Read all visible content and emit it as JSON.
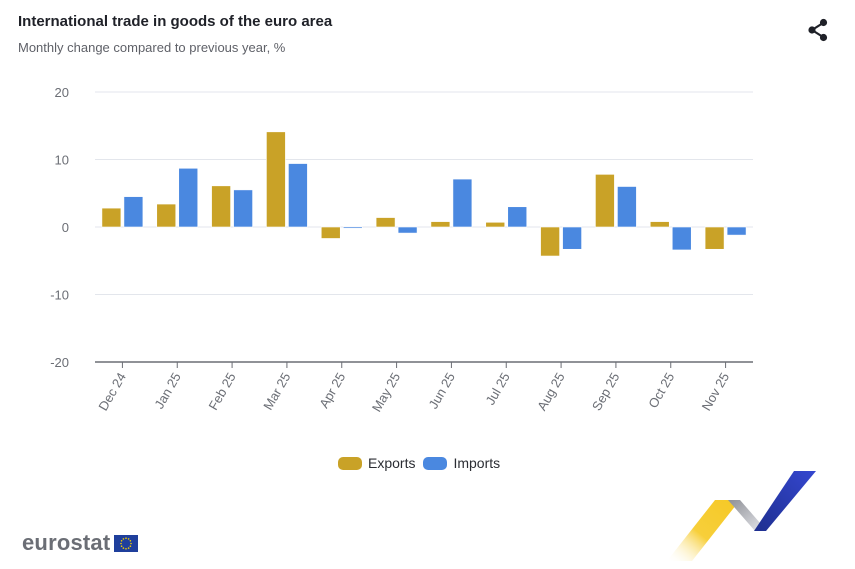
{
  "header": {
    "title": "International trade in goods of the euro area",
    "subtitle": "Monthly change compared to previous year, %",
    "share_icon": "share-icon"
  },
  "colors": {
    "exports": "#c9a227",
    "imports": "#4a88e0",
    "grid": "#e3e6ec",
    "axis": "#6b6e75",
    "tick_text": "#6b6e75"
  },
  "legend": {
    "items": [
      {
        "label": "Exports",
        "color": "#c9a227"
      },
      {
        "label": "Imports",
        "color": "#4a88e0"
      }
    ]
  },
  "logo": {
    "text": "eurostat",
    "flag_icon": "eu-flag-icon"
  },
  "chart_data": {
    "type": "bar",
    "title": "International trade in goods of the euro area",
    "subtitle": "Monthly change compared to previous year, %",
    "xlabel": "",
    "ylabel": "",
    "ylim": [
      -20,
      20
    ],
    "yticks": [
      20,
      10,
      0,
      -10,
      -20
    ],
    "grid": true,
    "legend_position": "bottom-center",
    "categories": [
      "Dec 24",
      "Jan 25",
      "Feb 25",
      "Mar 25",
      "Apr 25",
      "May 25",
      "Jun 25",
      "Jul 25",
      "Aug 25",
      "Sep 25",
      "Oct 25",
      "Nov 25"
    ],
    "series": [
      {
        "name": "Exports",
        "values": [
          2.8,
          3.4,
          6.1,
          14.1,
          -1.7,
          1.4,
          0.8,
          0.7,
          -4.3,
          7.8,
          0.8,
          -3.3
        ]
      },
      {
        "name": "Imports",
        "values": [
          4.5,
          8.7,
          5.5,
          9.4,
          -0.2,
          -0.9,
          7.1,
          3.0,
          -3.3,
          6.0,
          -3.4,
          -1.2
        ]
      }
    ]
  }
}
